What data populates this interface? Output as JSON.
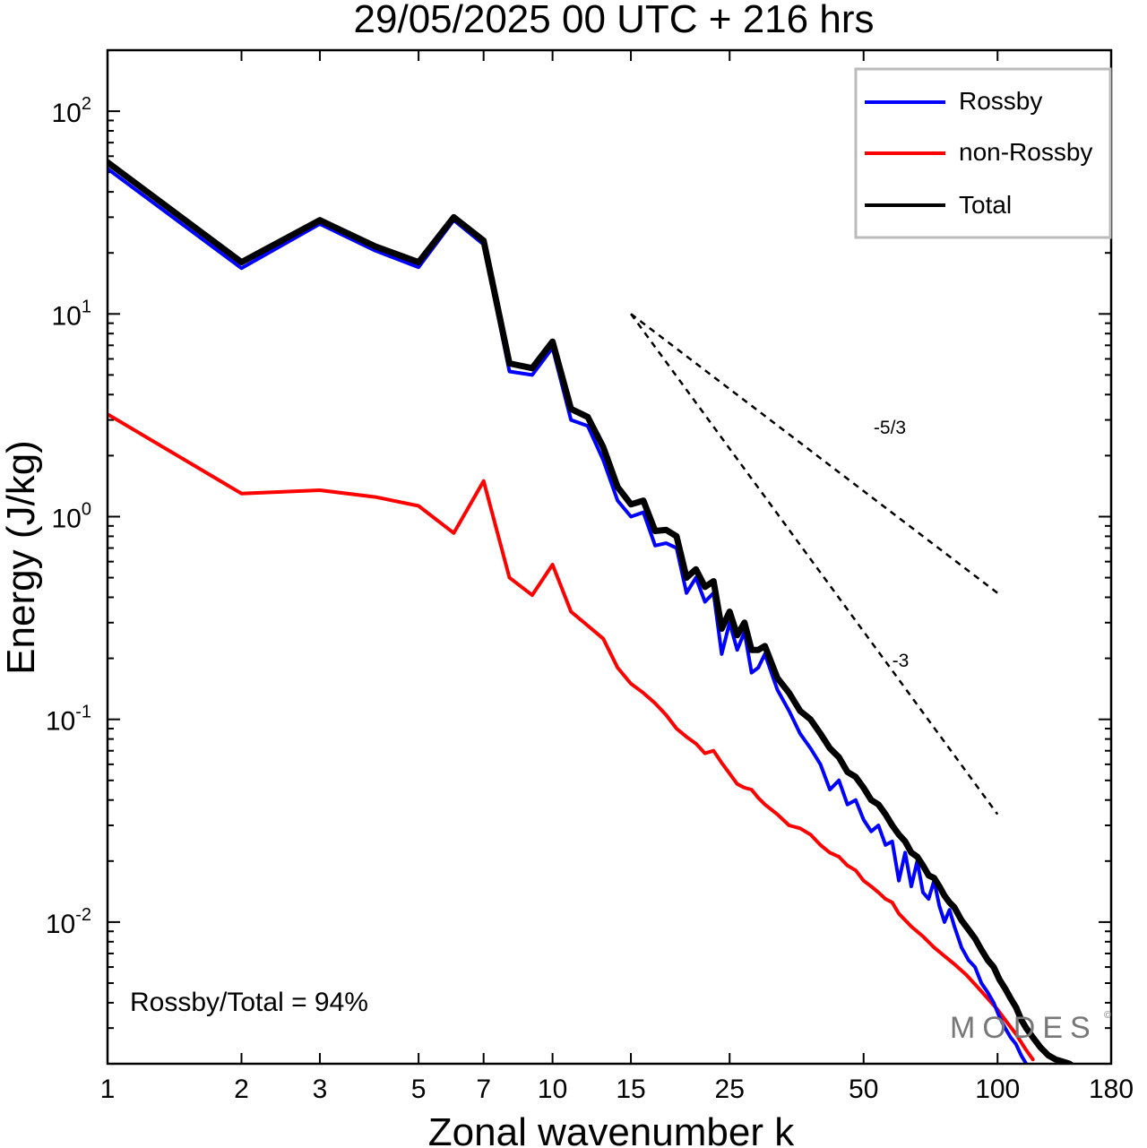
{
  "chart_data": {
    "type": "line",
    "title": "29/05/2025  00 UTC  + 216 hrs",
    "xlabel": "Zonal wavenumber k",
    "ylabel": "Energy (J/kg)",
    "xscale": "log",
    "yscale": "log",
    "xlim": [
      1,
      180
    ],
    "ylim": [
      0.002,
      200
    ],
    "x_ticks": [
      1,
      2,
      3,
      5,
      7,
      10,
      15,
      25,
      50,
      100,
      180
    ],
    "x_tick_labels": [
      "1",
      "2",
      "3",
      "5",
      "7",
      "10",
      "15",
      "25",
      "50",
      "100",
      "180"
    ],
    "y_ticks": [
      {
        "value": 100,
        "base": "10",
        "exp": "2"
      },
      {
        "value": 10,
        "base": "10",
        "exp": "1"
      },
      {
        "value": 1,
        "base": "10",
        "exp": "0"
      },
      {
        "value": 0.1,
        "base": "10",
        "exp": "-1"
      },
      {
        "value": 0.01,
        "base": "10",
        "exp": "-2"
      }
    ],
    "legend_position": "top-right",
    "series": [
      {
        "name": "Rossby",
        "color": "#0000ff",
        "x": [
          1,
          2,
          3,
          4,
          5,
          6,
          7,
          8,
          9,
          10,
          11,
          12,
          13,
          14,
          15,
          16,
          17,
          18,
          19,
          20,
          21,
          22,
          23,
          24,
          25,
          26,
          27,
          28,
          29,
          30,
          32,
          34,
          36,
          38,
          40,
          42,
          44,
          46,
          48,
          50,
          52,
          54,
          56,
          58,
          60,
          62,
          64,
          66,
          68,
          70,
          72,
          74,
          76,
          78,
          80,
          83,
          86,
          89,
          92,
          95,
          98,
          101,
          104,
          107,
          110,
          113,
          116
        ],
        "values": [
          52,
          16.8,
          27.8,
          20.5,
          17.0,
          29,
          22,
          5.2,
          5.0,
          6.8,
          3.0,
          2.8,
          1.9,
          1.2,
          1.0,
          1.05,
          0.72,
          0.74,
          0.7,
          0.42,
          0.5,
          0.38,
          0.42,
          0.21,
          0.3,
          0.22,
          0.27,
          0.17,
          0.18,
          0.21,
          0.14,
          0.11,
          0.085,
          0.072,
          0.06,
          0.045,
          0.05,
          0.038,
          0.04,
          0.032,
          0.028,
          0.03,
          0.024,
          0.025,
          0.016,
          0.022,
          0.015,
          0.02,
          0.014,
          0.013,
          0.016,
          0.012,
          0.01,
          0.0115,
          0.0095,
          0.0075,
          0.0065,
          0.006,
          0.005,
          0.0045,
          0.004,
          0.0034,
          0.003,
          0.0027,
          0.0025,
          0.0022,
          0.002
        ]
      },
      {
        "name": "non-Rossby",
        "color": "#ff0000",
        "x": [
          1,
          2,
          3,
          4,
          5,
          6,
          7,
          8,
          9,
          10,
          11,
          12,
          13,
          14,
          15,
          16,
          17,
          18,
          19,
          20,
          21,
          22,
          23,
          24,
          25,
          26,
          27,
          28,
          29,
          30,
          32,
          34,
          36,
          38,
          40,
          42,
          44,
          46,
          48,
          50,
          52,
          54,
          56,
          58,
          60,
          64,
          68,
          72,
          76,
          80,
          85,
          90,
          95,
          100,
          105,
          110,
          115,
          120
        ],
        "values": [
          3.2,
          1.3,
          1.35,
          1.25,
          1.13,
          0.83,
          1.5,
          0.5,
          0.41,
          0.58,
          0.34,
          0.29,
          0.25,
          0.18,
          0.15,
          0.135,
          0.12,
          0.105,
          0.09,
          0.082,
          0.076,
          0.068,
          0.07,
          0.061,
          0.054,
          0.048,
          0.046,
          0.045,
          0.041,
          0.038,
          0.034,
          0.03,
          0.029,
          0.027,
          0.024,
          0.022,
          0.021,
          0.019,
          0.018,
          0.016,
          0.015,
          0.014,
          0.013,
          0.0125,
          0.011,
          0.0095,
          0.0085,
          0.0075,
          0.0068,
          0.0062,
          0.0055,
          0.0048,
          0.0042,
          0.0037,
          0.0032,
          0.0028,
          0.0024,
          0.0021
        ]
      },
      {
        "name": "Total",
        "color": "#000000",
        "x": [
          1,
          2,
          3,
          4,
          5,
          6,
          7,
          8,
          9,
          10,
          11,
          12,
          13,
          14,
          15,
          16,
          17,
          18,
          19,
          20,
          21,
          22,
          23,
          24,
          25,
          26,
          27,
          28,
          29,
          30,
          32,
          34,
          36,
          38,
          40,
          42,
          44,
          46,
          48,
          50,
          52,
          54,
          56,
          58,
          60,
          62,
          64,
          66,
          68,
          70,
          72,
          74,
          76,
          78,
          80,
          83,
          86,
          89,
          92,
          95,
          98,
          101,
          104,
          107,
          110,
          113,
          116,
          120,
          125,
          130,
          135,
          140,
          145,
          150
        ],
        "values": [
          56,
          18,
          29,
          21.5,
          18,
          30,
          23,
          5.7,
          5.4,
          7.3,
          3.4,
          3.1,
          2.2,
          1.4,
          1.15,
          1.2,
          0.85,
          0.86,
          0.8,
          0.5,
          0.55,
          0.45,
          0.48,
          0.28,
          0.34,
          0.26,
          0.3,
          0.22,
          0.22,
          0.23,
          0.16,
          0.135,
          0.11,
          0.1,
          0.085,
          0.072,
          0.065,
          0.055,
          0.052,
          0.046,
          0.04,
          0.038,
          0.034,
          0.03,
          0.027,
          0.025,
          0.022,
          0.021,
          0.019,
          0.017,
          0.0165,
          0.015,
          0.0135,
          0.0125,
          0.0118,
          0.0102,
          0.0092,
          0.0083,
          0.0073,
          0.0065,
          0.006,
          0.0052,
          0.0047,
          0.0042,
          0.0038,
          0.0033,
          0.003,
          0.0027,
          0.0024,
          0.0022,
          0.0021,
          0.00205,
          0.002,
          0.0019
        ]
      }
    ],
    "reference_lines": [
      {
        "label": "-5/3",
        "x": [
          15,
          100
        ],
        "values": [
          10,
          0.42
        ]
      },
      {
        "label": "-3",
        "x": [
          15,
          100
        ],
        "values": [
          10,
          0.034
        ]
      }
    ],
    "annotation": "Rossby/Total = 94%"
  },
  "watermark": {
    "text": "MODES",
    "mark": "©"
  }
}
